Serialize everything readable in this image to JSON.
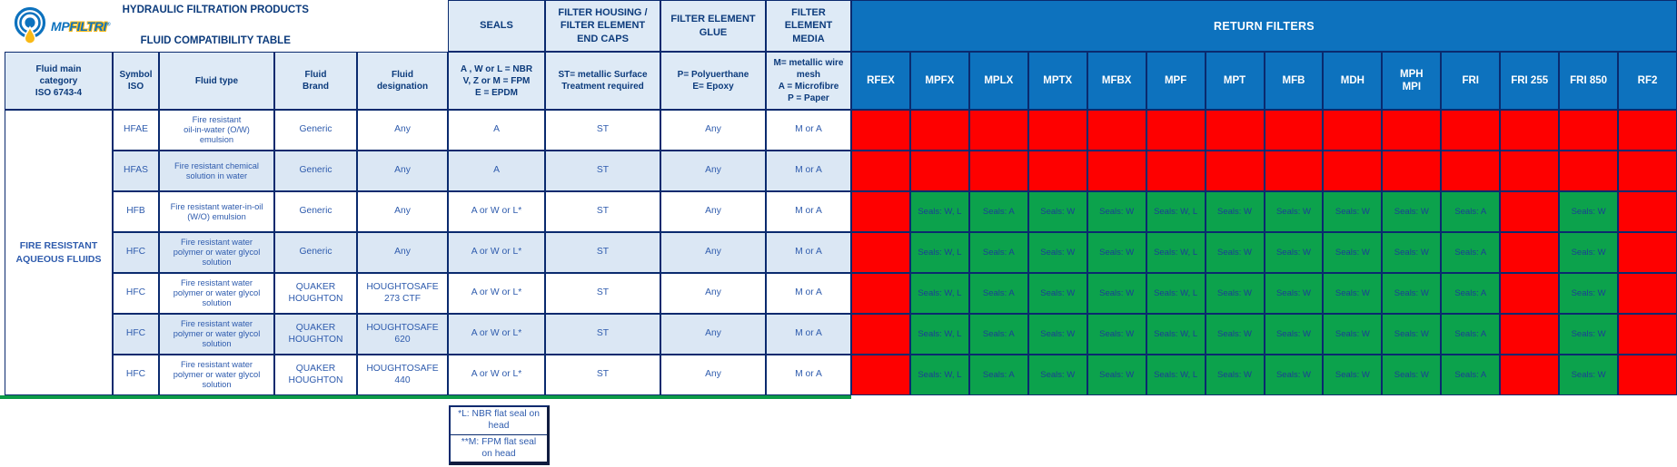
{
  "logo": {
    "mp": "MP",
    "filtri": "FILTRI",
    "reg": "®"
  },
  "title": {
    "line1": "HYDRAULIC FILTRATION PRODUCTS",
    "line2": "FLUID COMPATIBILITY TABLE"
  },
  "group_headers": {
    "seals": "SEALS",
    "end_caps": "FILTER HOUSING /\nFILTER ELEMENT\nEND CAPS",
    "glue": "FILTER ELEMENT\nGLUE",
    "media": "FILTER\nELEMENT\nMEDIA",
    "return_filters": "RETURN FILTERS"
  },
  "column_headers": {
    "category": "Fluid main\ncategory\nISO 6743-4",
    "symbol": "Symbol\nISO",
    "fluid_type": "Fluid type",
    "brand": "Fluid\nBrand",
    "designation": "Fluid\ndesignation",
    "seals_legend": "A , W or L = NBR\nV, Z or M = FPM\nE = EPDM",
    "end_caps_legend": "ST= metallic Surface\nTreatment required",
    "glue_legend": "P= Polyuerthane\nE= Epoxy",
    "media_legend": "M= metallic wire\nmesh\nA = Microfibre\nP = Paper"
  },
  "filter_columns": [
    "RFEX",
    "MPFX",
    "MPLX",
    "MPTX",
    "MFBX",
    "MPF",
    "MPT",
    "MFB",
    "MDH",
    "MPH\nMPI",
    "FRI",
    "FRI 255",
    "FRI 850",
    "RF2"
  ],
  "category_group": "FIRE RESISTANT\nAQUEOUS FLUIDS",
  "rows": [
    {
      "symbol": "HFAE",
      "fluid_type": "Fire resistant\noil-in-water (O/W)\nemulsion",
      "brand": "Generic",
      "designation": "Any",
      "seals": "A",
      "end_caps": "ST",
      "glue": "Any",
      "media": "M or A",
      "filters": [
        null,
        null,
        null,
        null,
        null,
        null,
        null,
        null,
        null,
        null,
        null,
        null,
        null,
        null
      ]
    },
    {
      "symbol": "HFAS",
      "fluid_type": "Fire resistant chemical\nsolution in water",
      "brand": "Generic",
      "designation": "Any",
      "seals": "A",
      "end_caps": "ST",
      "glue": "Any",
      "media": "M or A",
      "filters": [
        null,
        null,
        null,
        null,
        null,
        null,
        null,
        null,
        null,
        null,
        null,
        null,
        null,
        null
      ]
    },
    {
      "symbol": "HFB",
      "fluid_type": "Fire resistant water-in-oil\n(W/O) emulsion",
      "brand": "Generic",
      "designation": "Any",
      "seals": "A or W or L*",
      "end_caps": "ST",
      "glue": "Any",
      "media": "M or A",
      "filters": [
        null,
        "Seals: W, L",
        "Seals: A",
        "Seals: W",
        "Seals: W",
        "Seals: W, L",
        "Seals: W",
        "Seals: W",
        "Seals: W",
        "Seals: W",
        "Seals: A",
        null,
        "Seals: W",
        null
      ]
    },
    {
      "symbol": "HFC",
      "fluid_type": "Fire resistant water\npolymer or water glycol\nsolution",
      "brand": "Generic",
      "designation": "Any",
      "seals": "A or W or L*",
      "end_caps": "ST",
      "glue": "Any",
      "media": "M or A",
      "filters": [
        null,
        "Seals: W, L",
        "Seals: A",
        "Seals: W",
        "Seals: W",
        "Seals: W, L",
        "Seals: W",
        "Seals: W",
        "Seals: W",
        "Seals: W",
        "Seals: A",
        null,
        "Seals: W",
        null
      ]
    },
    {
      "symbol": "HFC",
      "fluid_type": "Fire resistant water\npolymer or water glycol\nsolution",
      "brand": "QUAKER\nHOUGHTON",
      "designation": "HOUGHTOSAFE\n273 CTF",
      "seals": "A or W or L*",
      "end_caps": "ST",
      "glue": "Any",
      "media": "M or A",
      "filters": [
        null,
        "Seals: W, L",
        "Seals: A",
        "Seals: W",
        "Seals: W",
        "Seals: W, L",
        "Seals: W",
        "Seals: W",
        "Seals: W",
        "Seals: W",
        "Seals: A",
        null,
        "Seals: W",
        null
      ]
    },
    {
      "symbol": "HFC",
      "fluid_type": "Fire resistant water\npolymer or water glycol\nsolution",
      "brand": "QUAKER\nHOUGHTON",
      "designation": "HOUGHTOSAFE\n620",
      "seals": "A or W or L*",
      "end_caps": "ST",
      "glue": "Any",
      "media": "M or A",
      "filters": [
        null,
        "Seals: W, L",
        "Seals: A",
        "Seals: W",
        "Seals: W",
        "Seals: W, L",
        "Seals: W",
        "Seals: W",
        "Seals: W",
        "Seals: W",
        "Seals: A",
        null,
        "Seals: W",
        null
      ]
    },
    {
      "symbol": "HFC",
      "fluid_type": "Fire resistant water\npolymer or water glycol\nsolution",
      "brand": "QUAKER\nHOUGHTON",
      "designation": "HOUGHTOSAFE\n440",
      "seals": "A or W or L*",
      "end_caps": "ST",
      "glue": "Any",
      "media": "M or A",
      "filters": [
        null,
        "Seals: W, L",
        "Seals: A",
        "Seals: W",
        "Seals: W",
        "Seals: W, L",
        "Seals: W",
        "Seals: W",
        "Seals: W",
        "Seals: W",
        "Seals: A",
        null,
        "Seals: W",
        null
      ]
    }
  ],
  "footnotes": [
    "*L: NBR flat seal on\nhead",
    "**M: FPM flat seal\non head"
  ],
  "colors": {
    "brand_blue": "#0d72be",
    "header_light_blue": "#deeaf6",
    "row_alt_blue": "#dbe7f4",
    "incompatible_red": "#fe0000",
    "compatible_green": "#0ca24c",
    "header_navy": "#0c3b7c",
    "body_blue": "#2e5bad",
    "border_navy": "#0a2a6e",
    "bottom_line_green": "#0b9a47"
  }
}
